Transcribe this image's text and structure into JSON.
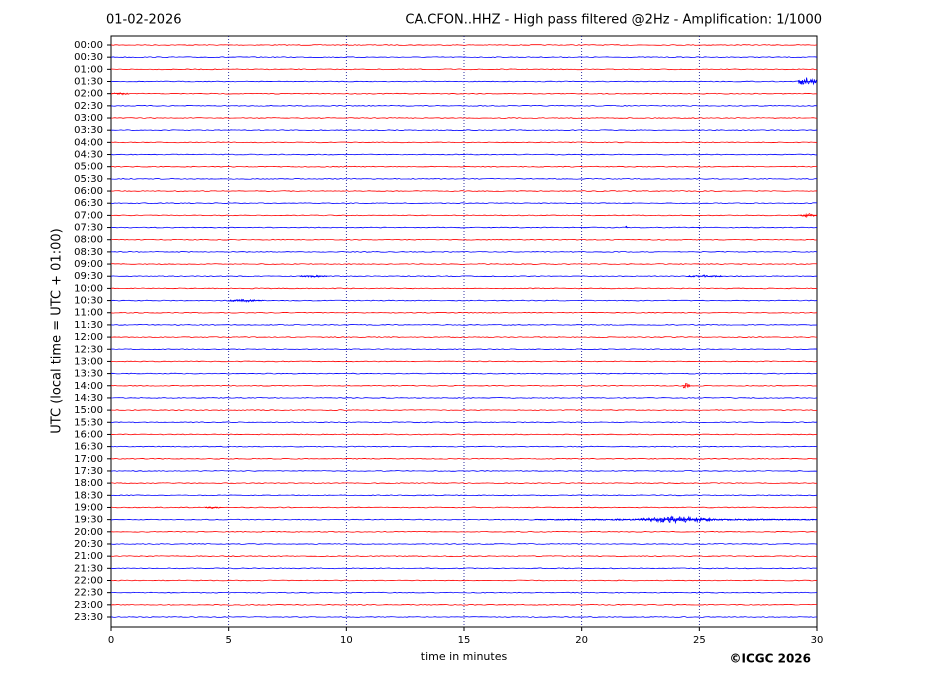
{
  "chart_data": {
    "type": "helicorder",
    "title": "CA.CFON..HHZ - High pass filtered @2Hz - Amplification: 1/1000",
    "date": "01-02-2026",
    "ylabel": "UTC (local time = UTC + 01:00)",
    "xlabel": "time in minutes",
    "credit": "©ICGC 2026",
    "categories": [
      "00:00",
      "00:30",
      "01:00",
      "01:30",
      "02:00",
      "02:30",
      "03:00",
      "03:30",
      "04:00",
      "04:30",
      "05:00",
      "05:30",
      "06:00",
      "06:30",
      "07:00",
      "07:30",
      "08:00",
      "08:30",
      "09:00",
      "09:30",
      "10:00",
      "10:30",
      "11:00",
      "11:30",
      "12:00",
      "12:30",
      "13:00",
      "13:30",
      "14:00",
      "14:30",
      "15:00",
      "15:30",
      "16:00",
      "16:30",
      "17:00",
      "17:30",
      "18:00",
      "18:30",
      "19:00",
      "19:30",
      "20:00",
      "20:30",
      "21:00",
      "21:30",
      "22:00",
      "22:30",
      "23:00",
      "23:30"
    ],
    "colors": [
      "#ff0000",
      "#0000ff"
    ],
    "xlim": [
      0,
      30
    ],
    "xticks": [
      0,
      5,
      10,
      15,
      20,
      25,
      30
    ],
    "grid": true,
    "events": [
      {
        "row": 3,
        "x": [
          29.2,
          30
        ],
        "amp": 0.4
      },
      {
        "row": 4,
        "x": [
          0,
          0.8
        ],
        "amp": 0.1
      },
      {
        "row": 14,
        "x": [
          29.3,
          30
        ],
        "amp": 0.15
      },
      {
        "row": 15,
        "x": [
          21.85,
          21.95
        ],
        "amp": 0.25
      },
      {
        "row": 19,
        "x": [
          8,
          9.2
        ],
        "amp": 0.1
      },
      {
        "row": 19,
        "x": [
          24.5,
          26
        ],
        "amp": 0.1
      },
      {
        "row": 21,
        "x": [
          5,
          6.5
        ],
        "amp": 0.12
      },
      {
        "row": 28,
        "x": [
          24.3,
          24.6
        ],
        "amp": 0.35
      },
      {
        "row": 38,
        "x": [
          4,
          4.7
        ],
        "amp": 0.08
      },
      {
        "row": 39,
        "x": [
          18,
          30
        ],
        "amp": 0.08
      },
      {
        "row": 39,
        "x": [
          22.5,
          25.5
        ],
        "amp": 0.3
      }
    ]
  }
}
